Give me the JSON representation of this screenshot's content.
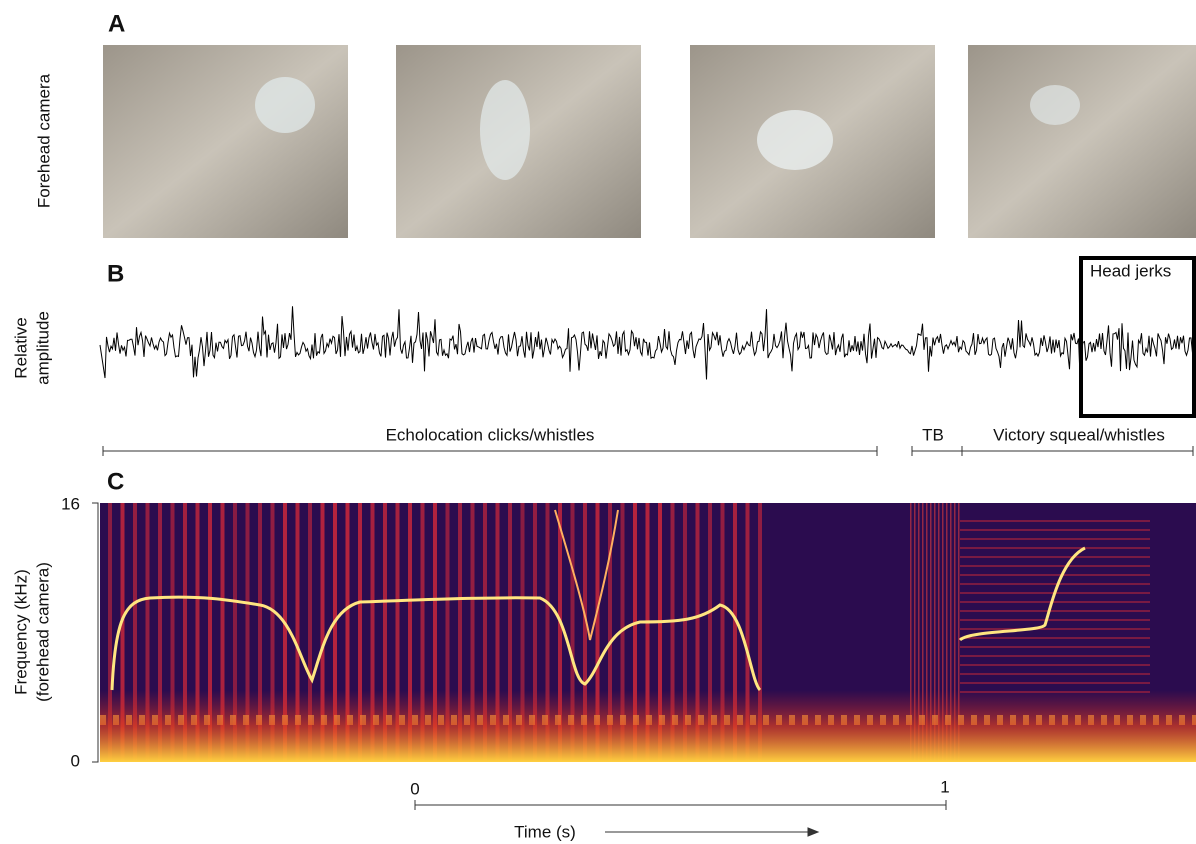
{
  "panels": {
    "a": {
      "label": "A",
      "ylabel": "Forehead camera"
    },
    "b": {
      "label": "B",
      "ylabel": [
        "Relative",
        "amplitude"
      ],
      "box_label": "Head jerks",
      "segments": [
        "Echolocation clicks/whistles",
        "TB",
        "Victory squeal/whistles"
      ]
    },
    "c": {
      "label": "C",
      "ylabel": [
        "Frequency (kHz)",
        "(forehead camera)"
      ],
      "y_top": "16",
      "y_bottom": "0",
      "time_scale": {
        "start": "0",
        "end": "1",
        "label": "Time (s)"
      }
    }
  }
}
